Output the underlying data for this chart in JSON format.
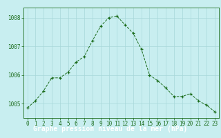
{
  "x": [
    0,
    1,
    2,
    3,
    4,
    5,
    6,
    7,
    8,
    9,
    10,
    11,
    12,
    13,
    14,
    15,
    16,
    17,
    18,
    19,
    20,
    21,
    22,
    23
  ],
  "y": [
    1004.85,
    1005.1,
    1005.45,
    1005.9,
    1005.9,
    1006.1,
    1006.45,
    1006.65,
    1007.2,
    1007.7,
    1008.0,
    1008.05,
    1007.75,
    1007.45,
    1006.9,
    1006.0,
    1005.8,
    1005.55,
    1005.25,
    1005.25,
    1005.35,
    1005.1,
    1004.95,
    1004.72
  ],
  "line_color": "#1a6b1a",
  "marker": "+",
  "bg_color": "#c8eef0",
  "grid_color": "#a8d8da",
  "axis_color": "#1a6b1a",
  "title": "Graphe pression niveau de la mer (hPa)",
  "title_bg": "#2d6e2d",
  "title_text_color": "#ffffff",
  "ylim_min": 1004.5,
  "ylim_max": 1008.35,
  "yticks": [
    1005,
    1006,
    1007,
    1008
  ],
  "xticks": [
    0,
    1,
    2,
    3,
    4,
    5,
    6,
    7,
    8,
    9,
    10,
    11,
    12,
    13,
    14,
    15,
    16,
    17,
    18,
    19,
    20,
    21,
    22,
    23
  ],
  "tick_fontsize": 5.5,
  "title_fontsize": 7.0,
  "fig_width": 3.2,
  "fig_height": 2.0,
  "dpi": 100
}
